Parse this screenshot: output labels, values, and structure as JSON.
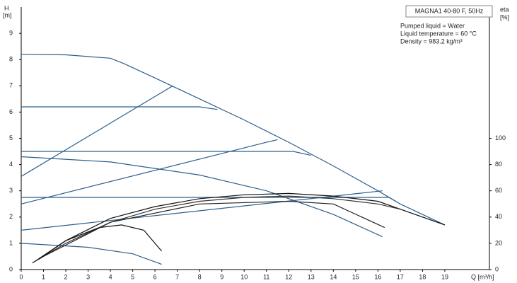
{
  "chart_data": {
    "type": "line",
    "title": "MAGNA1 40-80 F, 50Hz",
    "annotations": [
      "Pumped liquid = Water",
      "Liquid temperature = 60 °C",
      "Density = 983.2 kg/m³"
    ],
    "ylabel": [
      "H",
      "[m]"
    ],
    "y2label": [
      "eta",
      "[%]"
    ],
    "xlabel": "Q [m³/h]",
    "xlim": [
      0,
      21
    ],
    "xticks": [
      0,
      1,
      2,
      3,
      4,
      5,
      6,
      7,
      8,
      9,
      10,
      11,
      12,
      13,
      14,
      15,
      16,
      17,
      18,
      19
    ],
    "ylim": [
      0,
      10
    ],
    "yticks": [
      0,
      1,
      2,
      3,
      4,
      5,
      6,
      7,
      8,
      9
    ],
    "y2lim": [
      0,
      200
    ],
    "y2ticks": [
      0,
      20,
      40,
      60,
      80,
      100
    ],
    "grid": false,
    "series": [
      {
        "color": "#2d5f8c",
        "x": [
          0,
          2,
          4,
          4.6,
          6,
          8,
          10,
          12,
          14,
          16,
          17,
          19
        ],
        "values": [
          8.2,
          8.18,
          8.05,
          7.85,
          7.3,
          6.5,
          5.7,
          4.85,
          3.95,
          3.0,
          2.5,
          1.7
        ]
      },
      {
        "color": "#2d5f8c",
        "x": [
          0,
          6.8
        ],
        "values": [
          3.55,
          7.0
        ]
      },
      {
        "color": "#2d5f8c",
        "x": [
          0,
          11,
          11.5
        ],
        "values": [
          2.5,
          4.85,
          4.95
        ]
      },
      {
        "color": "#2d5f8c",
        "x": [
          0,
          16.2
        ],
        "values": [
          1.5,
          3.0
        ]
      },
      {
        "color": "#2d5f8c",
        "x": [
          0,
          8,
          8.8
        ],
        "values": [
          6.2,
          6.2,
          6.1
        ]
      },
      {
        "color": "#2d5f8c",
        "x": [
          0,
          12.2,
          13
        ],
        "values": [
          4.5,
          4.5,
          4.35
        ]
      },
      {
        "color": "#2d5f8c",
        "x": [
          0,
          16.5,
          16.8
        ],
        "values": [
          2.75,
          2.75,
          2.6
        ]
      },
      {
        "color": "#2d5f8c",
        "x": [
          0,
          4,
          8,
          11,
          14,
          16.2
        ],
        "values": [
          4.3,
          4.1,
          3.6,
          3.0,
          2.1,
          1.25
        ]
      },
      {
        "color": "#2d5f8c",
        "x": [
          0,
          3,
          5,
          6.3
        ],
        "values": [
          1.0,
          0.85,
          0.6,
          0.2
        ]
      },
      {
        "color": "#111111",
        "axis": "y2",
        "x": [
          0.5,
          2,
          4,
          6,
          8,
          10,
          12,
          14,
          16,
          19
        ],
        "values": [
          5,
          22,
          39,
          48,
          54,
          57,
          58,
          56,
          52,
          34
        ]
      },
      {
        "color": "#333333",
        "axis": "y2",
        "x": [
          0.6,
          2,
          4,
          6,
          8,
          10,
          12,
          14,
          16,
          17
        ],
        "values": [
          6,
          20,
          36,
          46,
          52,
          55,
          56,
          54,
          50,
          46
        ]
      },
      {
        "color": "#111111",
        "axis": "y2",
        "x": [
          0.8,
          2,
          3.5,
          4.5,
          5.5,
          6.3
        ],
        "values": [
          8,
          22,
          32,
          34,
          30,
          14
        ]
      },
      {
        "color": "#222222",
        "axis": "y2",
        "x": [
          1,
          4,
          8,
          12,
          14,
          16.3
        ],
        "values": [
          10,
          36,
          50,
          52,
          50,
          32
        ]
      }
    ]
  }
}
